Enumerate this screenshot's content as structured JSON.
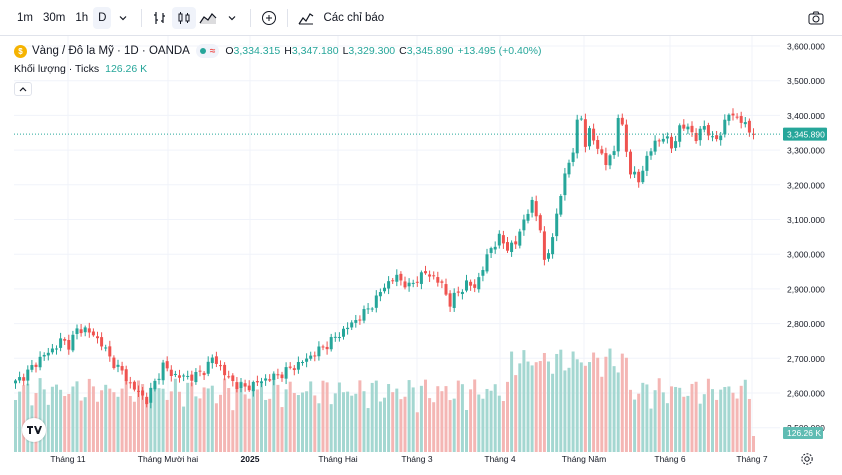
{
  "toolbar": {
    "intervals": [
      "1m",
      "30m",
      "1h",
      "D"
    ],
    "active_interval": "D",
    "indicators_label": "Các chỉ báo"
  },
  "legend": {
    "symbol_title": "Vàng / Đô la Mỹ · 1D · OANDA",
    "status_symbol": "≈",
    "open_label": "O",
    "open": "3,334.315",
    "high_label": "H",
    "high": "3,347.180",
    "low_label": "L",
    "low": "3,329.300",
    "close_label": "C",
    "close": "3,345.890",
    "change": "+13.495 (+0.40%)",
    "volume_label": "Khối lượng · Ticks",
    "volume_value": "126.26 K"
  },
  "colors": {
    "up": "#26a69a",
    "down": "#ef5350",
    "up_volume": "#a4d7d1",
    "down_volume": "#f4b6b4",
    "axis_text": "#131722",
    "grid": "#f0f3fa"
  },
  "icons": [
    "candlestick-icon",
    "bar-replay-icon",
    "area-chart-icon",
    "add-icon",
    "indicators-icon",
    "camera-icon",
    "settings-icon"
  ],
  "chart_data": {
    "type": "candlestick",
    "yaxis_ticks": [
      "3,600.000",
      "3,500.000",
      "3,400.000",
      "3,300.000",
      "3,200.000",
      "3,100.000",
      "3,000.000",
      "2,900.000",
      "2,800.000",
      "2,700.000",
      "2,600.000",
      "2,500.000"
    ],
    "ylim": [
      2500,
      3600
    ],
    "last_price_label": "3,345.890",
    "last_price": 3345.89,
    "volume_label_box": "126.26 K",
    "xaxis_ticks": [
      "Tháng 11",
      "Tháng Mười hai",
      "2025",
      "Tháng Hai",
      "Tháng 3",
      "Tháng 4",
      "Tháng Năm",
      "Tháng 6",
      "Tháng 7"
    ],
    "anchors": [
      [
        0,
        2630
      ],
      [
        3,
        2660
      ],
      [
        6,
        2700
      ],
      [
        9,
        2725
      ],
      [
        11,
        2750
      ],
      [
        13,
        2740
      ],
      [
        15,
        2780
      ],
      [
        17,
        2785
      ],
      [
        19,
        2765
      ],
      [
        21,
        2745
      ],
      [
        23,
        2700
      ],
      [
        26,
        2660
      ],
      [
        28,
        2625
      ],
      [
        30,
        2600
      ],
      [
        32,
        2580
      ],
      [
        34,
        2630
      ],
      [
        36,
        2680
      ],
      [
        38,
        2655
      ],
      [
        41,
        2645
      ],
      [
        44,
        2650
      ],
      [
        46,
        2665
      ],
      [
        48,
        2700
      ],
      [
        50,
        2675
      ],
      [
        52,
        2640
      ],
      [
        54,
        2625
      ],
      [
        56,
        2615
      ],
      [
        58,
        2625
      ],
      [
        61,
        2640
      ],
      [
        64,
        2650
      ],
      [
        67,
        2670
      ],
      [
        70,
        2690
      ],
      [
        73,
        2715
      ],
      [
        76,
        2740
      ],
      [
        79,
        2770
      ],
      [
        82,
        2800
      ],
      [
        85,
        2830
      ],
      [
        88,
        2870
      ],
      [
        90,
        2910
      ],
      [
        93,
        2935
      ],
      [
        96,
        2905
      ],
      [
        98,
        2930
      ],
      [
        100,
        2945
      ],
      [
        102,
        2935
      ],
      [
        104,
        2910
      ],
      [
        106,
        2860
      ],
      [
        108,
        2890
      ],
      [
        110,
        2915
      ],
      [
        112,
        2905
      ],
      [
        114,
        2960
      ],
      [
        116,
        3020
      ],
      [
        118,
        3045
      ],
      [
        120,
        3020
      ],
      [
        122,
        3030
      ],
      [
        124,
        3100
      ],
      [
        126,
        3145
      ],
      [
        128,
        3080
      ],
      [
        129,
        2970
      ],
      [
        130,
        3005
      ],
      [
        132,
        3110
      ],
      [
        134,
        3230
      ],
      [
        136,
        3300
      ],
      [
        137,
        3375
      ],
      [
        138,
        3395
      ],
      [
        139,
        3320
      ],
      [
        140,
        3350
      ],
      [
        142,
        3310
      ],
      [
        144,
        3260
      ],
      [
        146,
        3300
      ],
      [
        147,
        3400
      ],
      [
        148,
        3360
      ],
      [
        150,
        3240
      ],
      [
        152,
        3210
      ],
      [
        154,
        3280
      ],
      [
        156,
        3320
      ],
      [
        158,
        3340
      ],
      [
        160,
        3310
      ],
      [
        162,
        3360
      ],
      [
        164,
        3370
      ],
      [
        166,
        3330
      ],
      [
        168,
        3375
      ],
      [
        170,
        3325
      ],
      [
        172,
        3350
      ],
      [
        174,
        3405
      ],
      [
        176,
        3395
      ],
      [
        178,
        3370
      ],
      [
        180,
        3345
      ]
    ]
  }
}
